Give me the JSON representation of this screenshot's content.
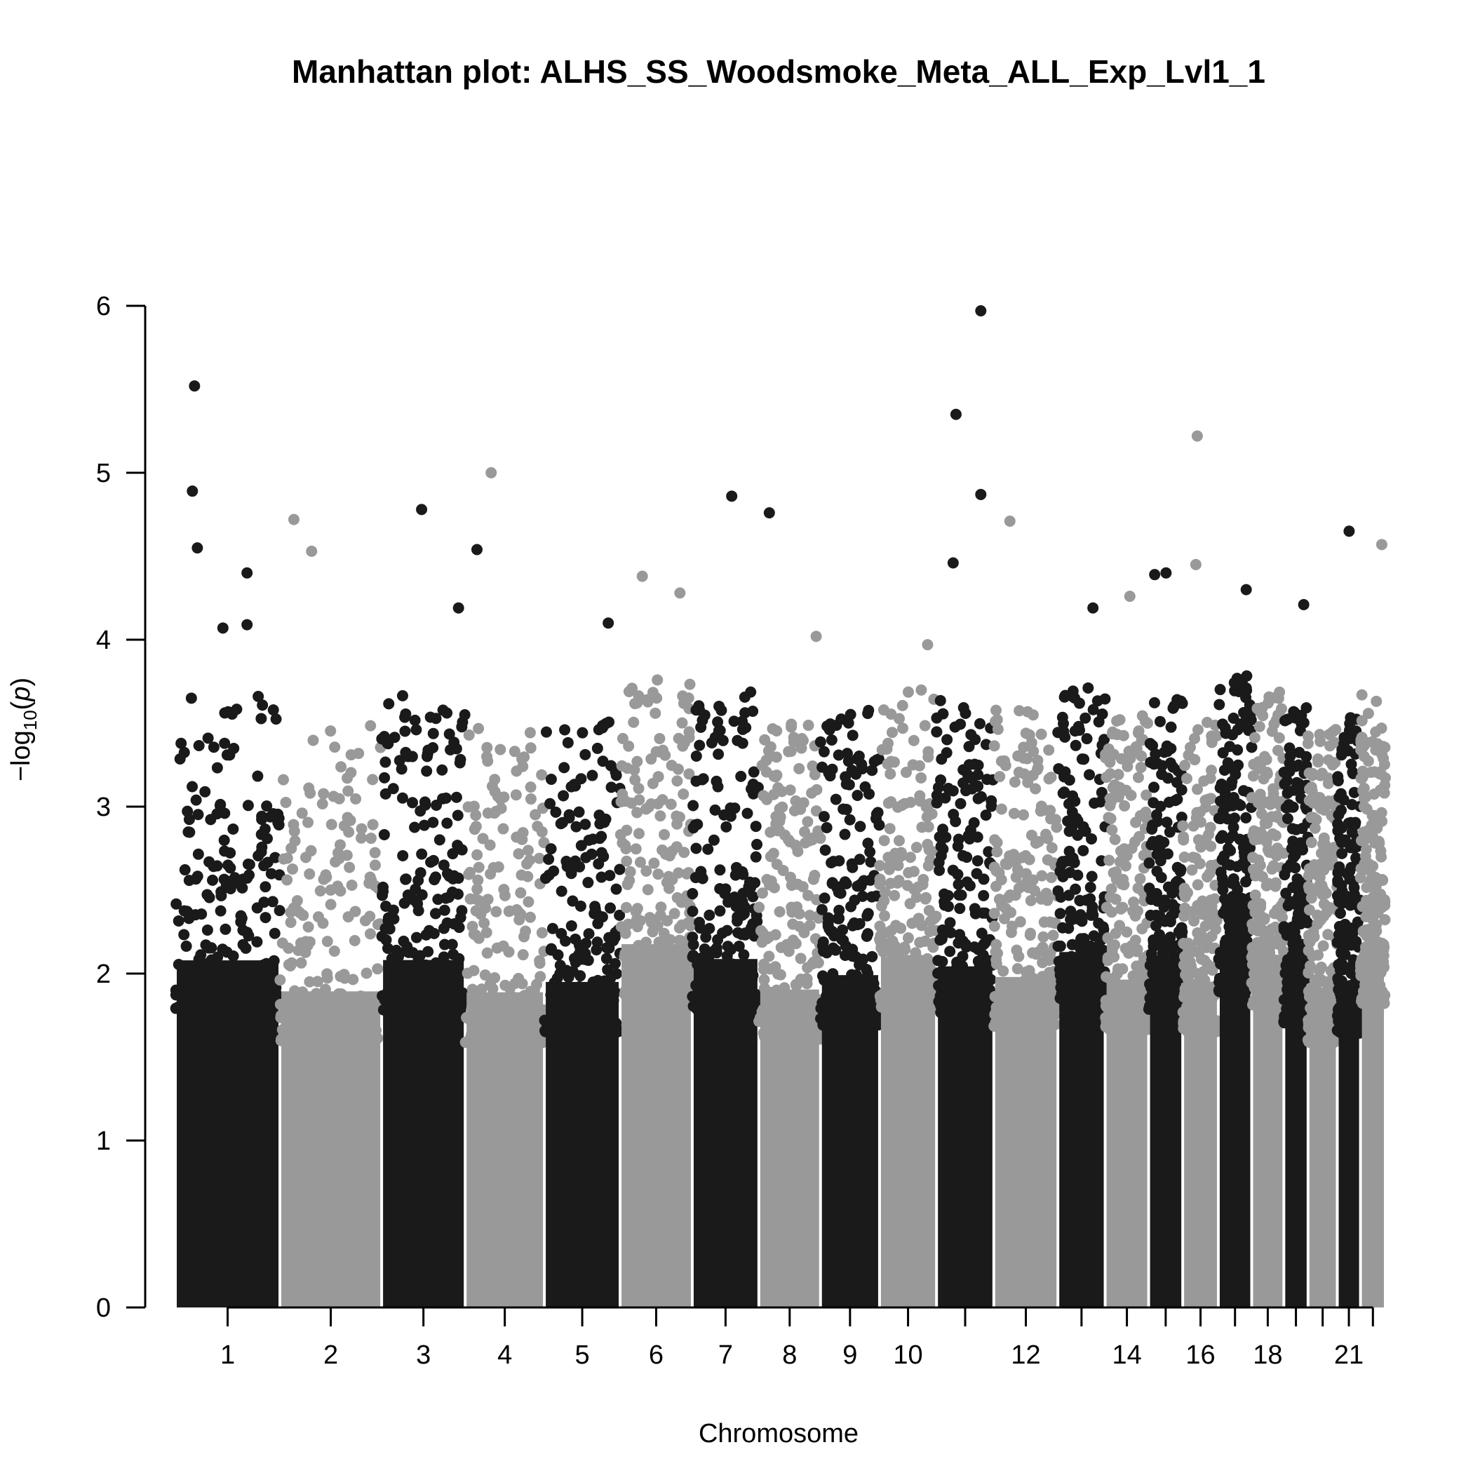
{
  "chart_data": {
    "type": "scatter",
    "title": "Manhattan plot: ALHS_SS_Woodsmoke_Meta_ALL_Exp_Lvl1_1",
    "xlabel": "Chromosome",
    "ylabel": "−log10(p)",
    "ylim": [
      0,
      6
    ],
    "y_ticks": [
      0,
      1,
      2,
      3,
      4,
      5,
      6
    ],
    "x_tick_labels": [
      "1",
      "2",
      "3",
      "4",
      "5",
      "6",
      "7",
      "8",
      "9",
      "10",
      "12",
      "14",
      "16",
      "18",
      "21"
    ],
    "colors": {
      "odd": "#1a1a1a",
      "even": "#999999"
    },
    "chromosomes": [
      {
        "chr": 1,
        "span": [
          0.0,
          147.3
        ],
        "peaks": [
          {
            "x": 27,
            "y": 5.52
          },
          {
            "x": 24,
            "y": 4.89
          },
          {
            "x": 31,
            "y": 4.55
          },
          {
            "x": 101,
            "y": 4.4
          },
          {
            "x": 101,
            "y": 4.09
          },
          {
            "x": 67,
            "y": 4.07
          }
        ]
      },
      {
        "chr": 2,
        "span": [
          147.3,
          290.7
        ],
        "peaks": [
          {
            "x": 167,
            "y": 4.72
          },
          {
            "x": 192,
            "y": 4.53
          }
        ]
      },
      {
        "chr": 3,
        "span": [
          290.7,
          408.4
        ],
        "peaks": [
          {
            "x": 425,
            "y": 4.54
          },
          {
            "x": 399,
            "y": 4.19
          },
          {
            "x": 347,
            "y": 4.78
          }
        ]
      },
      {
        "chr": 4,
        "span": [
          408.4,
          520.0
        ],
        "peaks": [
          {
            "x": 445,
            "y": 5.0
          }
        ]
      },
      {
        "chr": 5,
        "span": [
          520.0,
          626.7
        ],
        "peaks": [
          {
            "x": 610,
            "y": 4.1
          }
        ]
      },
      {
        "chr": 6,
        "span": [
          626.7,
          728.4
        ],
        "peaks": [
          {
            "x": 658,
            "y": 4.38
          },
          {
            "x": 711,
            "y": 4.28
          }
        ]
      },
      {
        "chr": 7,
        "span": [
          728.4,
          822.2
        ],
        "peaks": [
          {
            "x": 784,
            "y": 4.86
          },
          {
            "x": 837,
            "y": 4.76
          }
        ]
      },
      {
        "chr": 8,
        "span": [
          822.2,
          909.1
        ],
        "peaks": [
          {
            "x": 903,
            "y": 4.02
          }
        ]
      },
      {
        "chr": 9,
        "span": [
          909.1,
          992.3
        ],
        "peaks": [
          {
            "x": 985,
            "y": 3.27
          }
        ]
      },
      {
        "chr": 10,
        "span": [
          992.3,
          1072.6
        ],
        "peaks": [
          {
            "x": 1060,
            "y": 3.97
          }
        ]
      },
      {
        "chr": 11,
        "span": [
          1072.6,
          1153.3
        ],
        "peaks": [
          {
            "x": 1135,
            "y": 5.97
          },
          {
            "x": 1100,
            "y": 5.35
          },
          {
            "x": 1135,
            "y": 4.87
          },
          {
            "x": 1096,
            "y": 4.46
          }
        ]
      },
      {
        "chr": 12,
        "span": [
          1153.3,
          1243.6
        ],
        "peaks": [
          {
            "x": 1176,
            "y": 4.71
          }
        ]
      },
      {
        "chr": 13,
        "span": [
          1243.6,
          1310.2
        ],
        "peaks": [
          {
            "x": 1293,
            "y": 4.19
          }
        ]
      },
      {
        "chr": 14,
        "span": [
          1310.2,
          1371.5
        ],
        "peaks": [
          {
            "x": 1345,
            "y": 4.26
          }
        ]
      },
      {
        "chr": 15,
        "span": [
          1371.5,
          1419.5
        ],
        "peaks": [
          {
            "x": 1396,
            "y": 4.4
          },
          {
            "x": 1380,
            "y": 4.39
          }
        ]
      },
      {
        "chr": 16,
        "span": [
          1419.5,
          1469.7
        ],
        "peaks": [
          {
            "x": 1440,
            "y": 5.22
          },
          {
            "x": 1438,
            "y": 4.45
          }
        ]
      },
      {
        "chr": 17,
        "span": [
          1469.7,
          1516.7
        ],
        "peaks": [
          {
            "x": 1509,
            "y": 4.3
          }
        ]
      },
      {
        "chr": 18,
        "span": [
          1516.7,
          1562.0
        ],
        "peaks": [
          {
            "x": 1535,
            "y": 3.3
          }
        ]
      },
      {
        "chr": 19,
        "span": [
          1562.0,
          1596.1
        ],
        "peaks": [
          {
            "x": 1590,
            "y": 4.21
          }
        ]
      },
      {
        "chr": 20,
        "span": [
          1596.1,
          1637.3
        ],
        "peaks": [
          {
            "x": 1616,
            "y": 3.2
          }
        ]
      },
      {
        "chr": 21,
        "span": [
          1637.3,
          1670.0
        ],
        "peaks": [
          {
            "x": 1654,
            "y": 4.65
          }
        ]
      },
      {
        "chr": 22,
        "span": [
          1670.0,
          1705.0
        ],
        "peaks": [
          {
            "x": 1700,
            "y": 4.57
          }
        ]
      }
    ]
  }
}
